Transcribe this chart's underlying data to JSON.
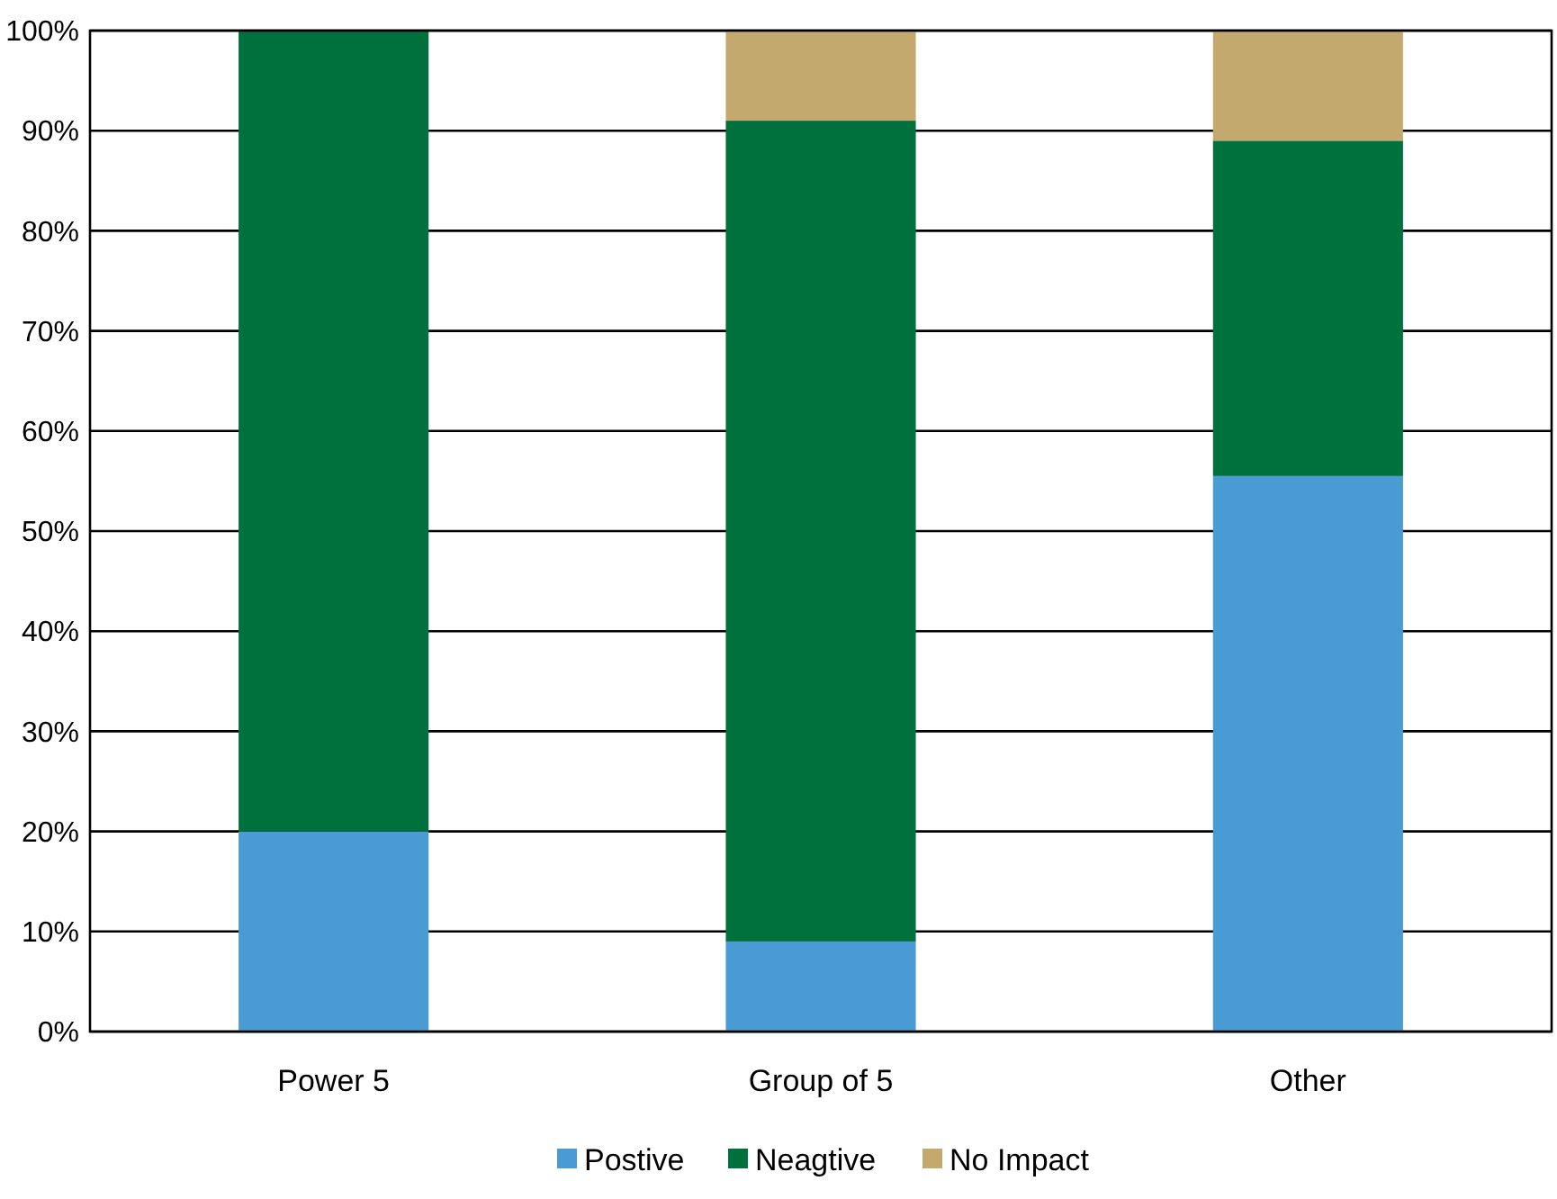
{
  "chart_data": {
    "type": "bar",
    "stacked": true,
    "categories": [
      "Power 5",
      "Group of 5",
      "Other"
    ],
    "series": [
      {
        "name": "Postive",
        "color": "#4a9bd4",
        "values": [
          20,
          9,
          55.5
        ]
      },
      {
        "name": "Neagtive",
        "color": "#00703c",
        "values": [
          80,
          82,
          33.5
        ]
      },
      {
        "name": "No Impact",
        "color": "#c4a96f",
        "values": [
          0,
          9,
          11
        ]
      }
    ],
    "ylim": [
      0,
      100
    ],
    "yticks": [
      {
        "value": 0,
        "label": "0%"
      },
      {
        "value": 10,
        "label": "10%"
      },
      {
        "value": 20,
        "label": "20%"
      },
      {
        "value": 30,
        "label": "30%"
      },
      {
        "value": 40,
        "label": "40%"
      },
      {
        "value": 50,
        "label": "50%"
      },
      {
        "value": 60,
        "label": "60%"
      },
      {
        "value": 70,
        "label": "70%"
      },
      {
        "value": 80,
        "label": "80%"
      },
      {
        "value": 90,
        "label": "90%"
      },
      {
        "value": 100,
        "label": "100%"
      }
    ],
    "grid": "y",
    "legend": "bottom"
  }
}
